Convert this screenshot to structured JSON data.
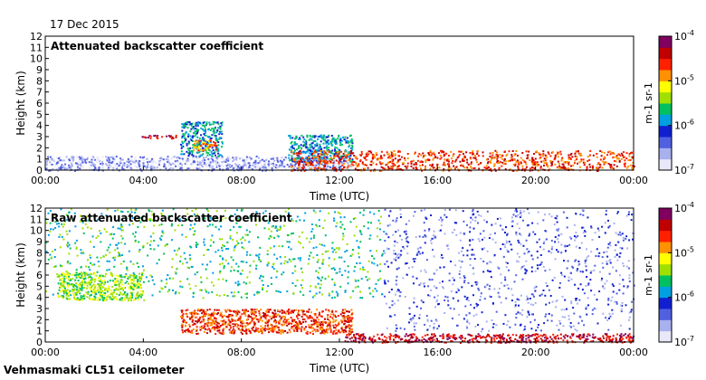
{
  "date": "17 Dec 2015",
  "footer": "Vehmasmaki CL51 ceilometer",
  "colors": {
    "scale": [
      "#e8e8f8",
      "#a8b0ee",
      "#5060e0",
      "#1020d0",
      "#00a0e0",
      "#00c060",
      "#a0e000",
      "#ffff00",
      "#ff9000",
      "#ff2000",
      "#c00000",
      "#800060"
    ]
  },
  "chart_data": [
    {
      "type": "heatmap",
      "title": "Attenuated backscatter coefficient",
      "xlabel": "Time (UTC)",
      "ylabel": "Height (km)",
      "xlim": [
        0,
        24
      ],
      "ylim": [
        0,
        12
      ],
      "x_ticks": [
        "00:00",
        "04:00",
        "08:00",
        "12:00",
        "16:00",
        "20:00",
        "00:00"
      ],
      "y_ticks": [
        "0",
        "1",
        "2",
        "3",
        "4",
        "5",
        "6",
        "7",
        "8",
        "9",
        "10",
        "11",
        "12"
      ],
      "colorbar": {
        "labels": [
          "10-4",
          "10-5",
          "10-6",
          "10-7"
        ],
        "unit": "m-1 sr-1",
        "scale": "log",
        "range": [
          "1e-7",
          "1e-4"
        ]
      },
      "features": [
        {
          "desc": "low noise layer",
          "t0": 0,
          "t1": 12.5,
          "h0": 0,
          "h1": 1.3,
          "level": 1
        },
        {
          "desc": "cloud",
          "t0": 5.5,
          "t1": 7.2,
          "h0": 1.3,
          "h1": 4.4,
          "level": 4
        },
        {
          "desc": "cloud core",
          "t0": 6.0,
          "t1": 7.0,
          "h0": 1.8,
          "h1": 2.8,
          "level": 8
        },
        {
          "desc": "thin layer",
          "t0": 3.9,
          "t1": 5.4,
          "h0": 2.9,
          "h1": 3.2,
          "level": 10
        },
        {
          "desc": "cloud",
          "t0": 9.9,
          "t1": 12.5,
          "h0": 0.8,
          "h1": 3.2,
          "level": 4
        },
        {
          "desc": "descending layer",
          "t0": 10.0,
          "t1": 24.0,
          "h0": 0.0,
          "h1": 1.8,
          "level": 9
        }
      ]
    },
    {
      "type": "heatmap",
      "title": "Raw attenuated backscatter coefficient",
      "xlabel": "Time (UTC)",
      "ylabel": "Height (km)",
      "xlim": [
        0,
        24
      ],
      "ylim": [
        0,
        12
      ],
      "x_ticks": [
        "00:00",
        "04:00",
        "08:00",
        "12:00",
        "16:00",
        "20:00",
        "00:00"
      ],
      "y_ticks": [
        "0",
        "1",
        "2",
        "3",
        "4",
        "5",
        "6",
        "7",
        "8",
        "9",
        "10",
        "11",
        "12"
      ],
      "colorbar": {
        "labels": [
          "10-4",
          "10-5",
          "10-6",
          "10-7"
        ],
        "unit": "m-1 sr-1",
        "scale": "log",
        "range": [
          "1e-7",
          "1e-4"
        ]
      },
      "features": [
        {
          "desc": "high noise",
          "t0": 0,
          "t1": 13.8,
          "h0": 4.0,
          "h1": 12.0,
          "level": 5
        },
        {
          "desc": "noise",
          "t0": 13.8,
          "t1": 24.0,
          "h0": 1.0,
          "h1": 12.0,
          "level": 2
        },
        {
          "desc": "plume",
          "t0": 0.5,
          "t1": 4.0,
          "h0": 3.8,
          "h1": 6.3,
          "level": 6
        },
        {
          "desc": "layer",
          "t0": 5.5,
          "t1": 12.5,
          "h0": 0.8,
          "h1": 3.0,
          "level": 9
        },
        {
          "desc": "surface layer",
          "t0": 12.2,
          "t1": 24.0,
          "h0": 0.0,
          "h1": 0.8,
          "level": 10
        }
      ]
    }
  ]
}
